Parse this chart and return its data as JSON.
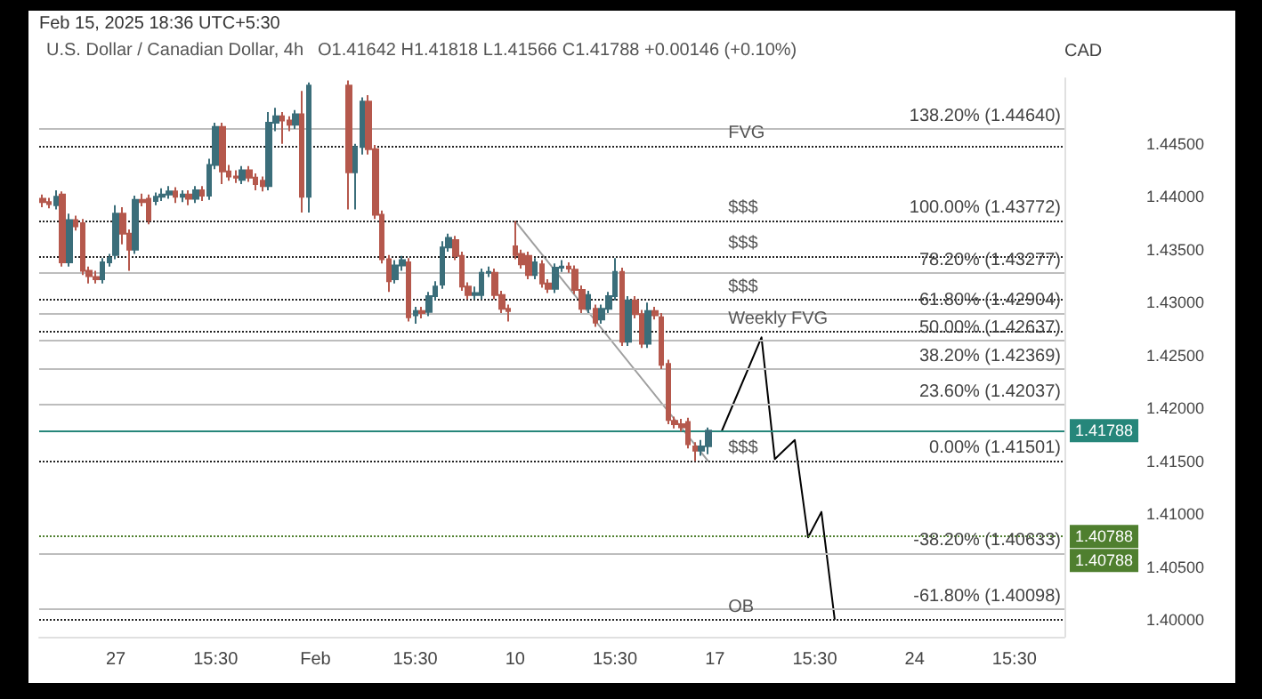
{
  "chart_data": {
    "type": "candlestick",
    "title": "U.S. Dollar / Canadian Dollar, 4h",
    "subtitle": "Feb 15, 2025 18:36 UTC+5:30",
    "ylabel": "CAD",
    "categories": [
      null,
      null,
      null,
      null,
      null,
      null,
      null,
      null,
      null,
      null,
      null,
      "27",
      null,
      null,
      null,
      null,
      null,
      null,
      null,
      null,
      null,
      null,
      null,
      null,
      null,
      null,
      "15:30",
      null,
      null,
      null,
      null,
      null,
      null,
      null,
      null,
      null,
      null,
      null,
      null,
      null,
      null,
      "Feb",
      null,
      null,
      null,
      null,
      null,
      null,
      null,
      null,
      null,
      null,
      null,
      null,
      null,
      null,
      "15:30",
      null,
      null,
      null,
      null,
      null,
      null,
      null,
      null,
      null,
      null,
      null,
      null,
      null,
      null,
      "10",
      null,
      null,
      null,
      null,
      null,
      null,
      null,
      null,
      null,
      null,
      null,
      null,
      null,
      null,
      "15:30",
      null,
      null,
      null,
      null,
      null,
      null,
      null,
      null,
      null,
      null,
      null,
      null,
      null,
      null,
      "17",
      null,
      null,
      null,
      null,
      null,
      null,
      null,
      null,
      null,
      null,
      null,
      null,
      null,
      null,
      "15:30",
      null,
      null,
      null,
      null,
      null,
      null,
      null,
      null,
      null,
      null,
      null,
      null,
      null,
      null,
      "24",
      null,
      null,
      null,
      null,
      null,
      null,
      null,
      null,
      null,
      null,
      null,
      null,
      null,
      null,
      "15:30",
      null,
      null,
      null,
      null,
      null,
      null,
      null
    ],
    "ohlc": [
      [
        1.4398,
        1.4402,
        1.439,
        1.4395
      ],
      [
        1.4395,
        1.4399,
        1.4389,
        1.4393
      ],
      [
        1.4392,
        1.4406,
        1.4388,
        1.44
      ],
      [
        1.4402,
        1.4405,
        1.4334,
        1.4338
      ],
      [
        1.4338,
        1.4384,
        1.4334,
        1.4378
      ],
      [
        1.4378,
        1.4382,
        1.4368,
        1.4372
      ],
      [
        1.4375,
        1.4379,
        1.4326,
        1.433
      ],
      [
        1.433,
        1.4334,
        1.4318,
        1.4325
      ],
      [
        1.4324,
        1.433,
        1.4318,
        1.4322
      ],
      [
        1.4322,
        1.4342,
        1.4318,
        1.4338
      ],
      [
        1.4338,
        1.4346,
        1.4334,
        1.4342
      ],
      [
        1.4345,
        1.4392,
        1.4341,
        1.4384
      ],
      [
        1.4384,
        1.439,
        1.4355,
        1.4365
      ],
      [
        1.4365,
        1.4369,
        1.433,
        1.435
      ],
      [
        1.435,
        1.4401,
        1.4346,
        1.4397
      ],
      [
        1.4397,
        1.4403,
        1.4391,
        1.4395
      ],
      [
        1.4398,
        1.4402,
        1.4374,
        1.4378
      ],
      [
        1.4396,
        1.4404,
        1.4392,
        1.44
      ],
      [
        1.44,
        1.4408,
        1.4396,
        1.4402
      ],
      [
        1.4402,
        1.441,
        1.4398,
        1.4405
      ],
      [
        1.4405,
        1.4409,
        1.4394,
        1.44
      ],
      [
        1.44,
        1.4406,
        1.4395,
        1.4402
      ],
      [
        1.4402,
        1.4406,
        1.4392,
        1.4398
      ],
      [
        1.4398,
        1.441,
        1.4394,
        1.4406
      ],
      [
        1.4406,
        1.441,
        1.4396,
        1.4401
      ],
      [
        1.4401,
        1.4436,
        1.4397,
        1.443
      ],
      [
        1.443,
        1.447,
        1.4426,
        1.4466
      ],
      [
        1.4466,
        1.447,
        1.4412,
        1.4424
      ],
      [
        1.4424,
        1.443,
        1.4415,
        1.4419
      ],
      [
        1.4419,
        1.4425,
        1.4413,
        1.4418
      ],
      [
        1.4416,
        1.4429,
        1.4412,
        1.4425
      ],
      [
        1.4425,
        1.4429,
        1.4414,
        1.4418
      ],
      [
        1.4418,
        1.4422,
        1.4406,
        1.4412
      ],
      [
        1.4415,
        1.4419,
        1.4405,
        1.441
      ],
      [
        1.441,
        1.448,
        1.4406,
        1.447
      ],
      [
        1.447,
        1.4484,
        1.4462,
        1.4476
      ],
      [
        1.4476,
        1.448,
        1.445,
        1.4472
      ],
      [
        1.4472,
        1.4476,
        1.4462,
        1.4468
      ],
      [
        1.4468,
        1.4482,
        1.4464,
        1.4478
      ],
      [
        1.4478,
        1.45,
        1.4385,
        1.44
      ],
      [
        1.44,
        1.4508,
        1.4385,
        1.4505
      ],
      null,
      null,
      null,
      null,
      null,
      [
        1.4505,
        1.451,
        1.4388,
        1.4423
      ],
      [
        1.4423,
        1.445,
        1.4388,
        1.4447
      ],
      [
        1.4447,
        1.4494,
        1.444,
        1.449
      ],
      [
        1.449,
        1.4496,
        1.444,
        1.4445
      ],
      [
        1.4445,
        1.4449,
        1.4379,
        1.4383
      ],
      [
        1.4383,
        1.4387,
        1.4337,
        1.4341
      ],
      [
        1.4341,
        1.4345,
        1.431,
        1.432
      ],
      [
        1.4322,
        1.434,
        1.4318,
        1.4335
      ],
      [
        1.4335,
        1.4344,
        1.433,
        1.434
      ],
      [
        1.4338,
        1.4342,
        1.4282,
        1.4286
      ],
      [
        1.4288,
        1.4296,
        1.428,
        1.4292
      ],
      [
        1.4292,
        1.4296,
        1.4285,
        1.429
      ],
      [
        1.4291,
        1.431,
        1.4287,
        1.4306
      ],
      [
        1.4306,
        1.432,
        1.4302,
        1.4315
      ],
      [
        1.4317,
        1.4358,
        1.4313,
        1.4352
      ],
      [
        1.4352,
        1.4365,
        1.4348,
        1.4361
      ],
      [
        1.4359,
        1.4363,
        1.434,
        1.4344
      ],
      [
        1.4344,
        1.4348,
        1.4311,
        1.4315
      ],
      [
        1.4315,
        1.4319,
        1.4303,
        1.4307
      ],
      [
        1.4307,
        1.4315,
        1.4303,
        1.4309
      ],
      [
        1.4307,
        1.4332,
        1.4303,
        1.4328
      ],
      [
        1.4328,
        1.4334,
        1.4324,
        1.4329
      ],
      [
        1.4328,
        1.4332,
        1.4303,
        1.4307
      ],
      [
        1.4307,
        1.4311,
        1.429,
        1.4294
      ],
      [
        1.4294,
        1.4298,
        1.4282,
        1.4292
      ],
      [
        1.4353,
        1.4377,
        1.4341,
        1.4345
      ],
      [
        1.4346,
        1.435,
        1.4332,
        1.4336
      ],
      [
        1.4344,
        1.4348,
        1.4322,
        1.4326
      ],
      [
        1.4326,
        1.4342,
        1.4322,
        1.4338
      ],
      [
        1.4336,
        1.434,
        1.4314,
        1.4318
      ],
      [
        1.4318,
        1.4322,
        1.4309,
        1.4313
      ],
      [
        1.4313,
        1.4337,
        1.4309,
        1.4333
      ],
      [
        1.4333,
        1.434,
        1.4329,
        1.4334
      ],
      [
        1.4334,
        1.4338,
        1.4328,
        1.4332
      ],
      [
        1.4331,
        1.4335,
        1.4308,
        1.4312
      ],
      [
        1.4312,
        1.4316,
        1.429,
        1.4294
      ],
      [
        1.4294,
        1.4311,
        1.429,
        1.4307
      ],
      [
        1.4294,
        1.4298,
        1.4277,
        1.4281
      ],
      [
        1.4284,
        1.4298,
        1.428,
        1.4294
      ],
      [
        1.4294,
        1.431,
        1.429,
        1.4306
      ],
      [
        1.4306,
        1.4342,
        1.4302,
        1.4329
      ],
      [
        1.4329,
        1.4333,
        1.4259,
        1.4263
      ],
      [
        1.4263,
        1.4306,
        1.4259,
        1.4302
      ],
      [
        1.4302,
        1.4306,
        1.4285,
        1.4289
      ],
      [
        1.4289,
        1.4293,
        1.4257,
        1.4261
      ],
      [
        1.4261,
        1.43,
        1.4257,
        1.4292
      ],
      [
        1.4292,
        1.4296,
        1.4284,
        1.4288
      ],
      [
        1.4286,
        1.429,
        1.4237,
        1.4241
      ],
      [
        1.4242,
        1.4246,
        1.4185,
        1.4189
      ],
      [
        1.4188,
        1.4192,
        1.4181,
        1.4185
      ],
      [
        1.4185,
        1.419,
        1.4178,
        1.4182
      ],
      [
        1.4187,
        1.4191,
        1.4162,
        1.4166
      ],
      [
        1.4164,
        1.4168,
        1.41501,
        1.416
      ],
      [
        1.416,
        1.417,
        1.4155,
        1.4164
      ],
      [
        1.41642,
        1.41818,
        1.41566,
        1.41788
      ],
      null,
      null,
      null,
      null,
      null,
      null,
      null,
      null,
      null,
      null,
      null,
      null,
      null,
      null,
      null,
      null,
      null,
      null,
      null,
      null,
      null,
      null,
      null,
      null,
      null,
      null,
      null,
      null,
      null,
      null,
      null,
      null,
      null,
      null,
      null,
      null,
      null,
      null,
      null,
      null,
      null,
      null,
      null,
      null,
      null,
      null,
      null,
      null,
      null,
      null,
      null,
      null,
      null
    ],
    "series": [
      {
        "type": "line",
        "color": "#9e9e9e",
        "values": [
          null,
          null,
          null,
          null,
          null,
          null,
          null,
          null,
          null,
          null,
          null,
          null,
          null,
          null,
          null,
          null,
          null,
          null,
          null,
          null,
          null,
          null,
          null,
          null,
          null,
          null,
          null,
          null,
          null,
          null,
          null,
          null,
          null,
          null,
          null,
          null,
          null,
          null,
          null,
          null,
          null,
          null,
          null,
          null,
          null,
          null,
          null,
          null,
          null,
          null,
          null,
          null,
          null,
          null,
          null,
          null,
          null,
          null,
          null,
          null,
          null,
          null,
          null,
          null,
          null,
          null,
          null,
          null,
          null,
          null,
          null,
          1.4377,
          null,
          null,
          null,
          null,
          null,
          null,
          null,
          null,
          null,
          null,
          null,
          null,
          null,
          null,
          null,
          null,
          null,
          null,
          null,
          null,
          null,
          null,
          null,
          null,
          null,
          null,
          null,
          null,
          1.415,
          null,
          null,
          null,
          null,
          null,
          null,
          null,
          null,
          null,
          null,
          null,
          null,
          null,
          null,
          null,
          null,
          null,
          null,
          null,
          null,
          null,
          null,
          null,
          null,
          null,
          null,
          null,
          null,
          null,
          null,
          null,
          null,
          null,
          null,
          null,
          null,
          null,
          null,
          null,
          null,
          null,
          null,
          null,
          null,
          null,
          null,
          null,
          null,
          null,
          null,
          null,
          null,
          null
        ]
      },
      {
        "type": "line",
        "color": "#000000",
        "values": [
          null,
          null,
          null,
          null,
          null,
          null,
          null,
          null,
          null,
          null,
          null,
          null,
          null,
          null,
          null,
          null,
          null,
          null,
          null,
          null,
          null,
          null,
          null,
          null,
          null,
          null,
          null,
          null,
          null,
          null,
          null,
          null,
          null,
          null,
          null,
          null,
          null,
          null,
          null,
          null,
          null,
          null,
          null,
          null,
          null,
          null,
          null,
          null,
          null,
          null,
          null,
          null,
          null,
          null,
          null,
          null,
          null,
          null,
          null,
          null,
          null,
          null,
          null,
          null,
          null,
          null,
          null,
          null,
          null,
          null,
          null,
          null,
          null,
          null,
          null,
          null,
          null,
          null,
          null,
          null,
          null,
          null,
          null,
          null,
          null,
          null,
          null,
          null,
          null,
          null,
          null,
          null,
          null,
          null,
          null,
          null,
          null,
          null,
          null,
          null,
          null,
          null,
          1.4178,
          null,
          null,
          null,
          null,
          null,
          1.4267,
          null,
          1.4152,
          null,
          null,
          1.417,
          null,
          1.4078,
          null,
          1.4102,
          null,
          1.4,
          null,
          null,
          null,
          null,
          null,
          null,
          null,
          null,
          null,
          null,
          null,
          null,
          null,
          null,
          null,
          null,
          null,
          null,
          null,
          null,
          null,
          null,
          null,
          null,
          null,
          null,
          null,
          null,
          null,
          null,
          null,
          null,
          null,
          null
        ]
      }
    ],
    "ylim": [
      1.3984,
      1.4512
    ],
    "yticks": [
      {
        "value": 1.4,
        "label": "1.40000"
      },
      {
        "value": 1.405,
        "label": "1.40500"
      },
      {
        "value": 1.41,
        "label": "1.41000"
      },
      {
        "value": 1.415,
        "label": "1.41500"
      },
      {
        "value": 1.42,
        "label": "1.42000"
      },
      {
        "value": 1.425,
        "label": "1.42500"
      },
      {
        "value": 1.43,
        "label": "1.43000"
      },
      {
        "value": 1.435,
        "label": "1.43500"
      },
      {
        "value": 1.44,
        "label": "1.44000"
      },
      {
        "value": 1.445,
        "label": "1.44500"
      }
    ],
    "ref_lines": [
      {
        "axis": "y",
        "value": 1.4464,
        "label": "138.20% (1.44640)",
        "line_style": "solid"
      },
      {
        "axis": "y",
        "value": 1.4448,
        "line_style": "dotted"
      },
      {
        "axis": "y",
        "value": 1.43772,
        "label": "100.00% (1.43772)",
        "line_style": "dotted"
      },
      {
        "axis": "y",
        "value": 1.4344,
        "line_style": "dotted"
      },
      {
        "axis": "y",
        "value": 1.43277,
        "label": "78.20% (1.43277)",
        "line_style": "solid"
      },
      {
        "axis": "y",
        "value": 1.4303,
        "line_style": "dotted"
      },
      {
        "axis": "y",
        "value": 1.42904,
        "label": "61.80% (1.42904)",
        "line_style": "solid"
      },
      {
        "axis": "y",
        "value": 1.4272,
        "line_style": "dotted"
      },
      {
        "axis": "y",
        "value": 1.42637,
        "label": "50.00% (1.42637)",
        "line_style": "solid"
      },
      {
        "axis": "y",
        "value": 1.42369,
        "label": "38.20% (1.42369)",
        "line_style": "solid"
      },
      {
        "axis": "y",
        "value": 1.42037,
        "label": "23.60% (1.42037)",
        "line_style": "solid"
      },
      {
        "axis": "y",
        "value": 1.41788,
        "label": "1.41788",
        "color": "#26867a",
        "line_style": "solid"
      },
      {
        "axis": "y",
        "value": 1.41501,
        "label": "0.00% (1.41501)",
        "line_style": "dotted"
      },
      {
        "axis": "y",
        "value": 1.40788,
        "label": "1.40788",
        "color": "#4f7f2f",
        "line_style": "dotted"
      },
      {
        "axis": "y",
        "value": 1.40633,
        "label": "-38.20% (1.40633)",
        "line_style": "solid"
      },
      {
        "axis": "y",
        "value": 1.40098,
        "label": "-61.80% (1.40098)",
        "line_style": "solid"
      },
      {
        "axis": "y",
        "value": 1.4,
        "line_style": "dotted"
      }
    ],
    "annotations": [
      "O1.41642 H1.41818 L1.41566 C1.41788 +0.00146 (+0.10%)",
      {
        "text": "FVG",
        "y": 1.4448
      },
      {
        "text": "$$$",
        "y": 1.43772
      },
      {
        "text": "$$$",
        "y": 1.4344
      },
      {
        "text": "$$$",
        "y": 1.4303
      },
      {
        "text": "Weekly FVG",
        "y": 1.4272
      },
      {
        "text": "$$$",
        "y": 1.41501
      },
      {
        "text": "OB",
        "y": 1.4
      },
      {
        "text": "1.40788",
        "y": 1.40788
      }
    ]
  }
}
